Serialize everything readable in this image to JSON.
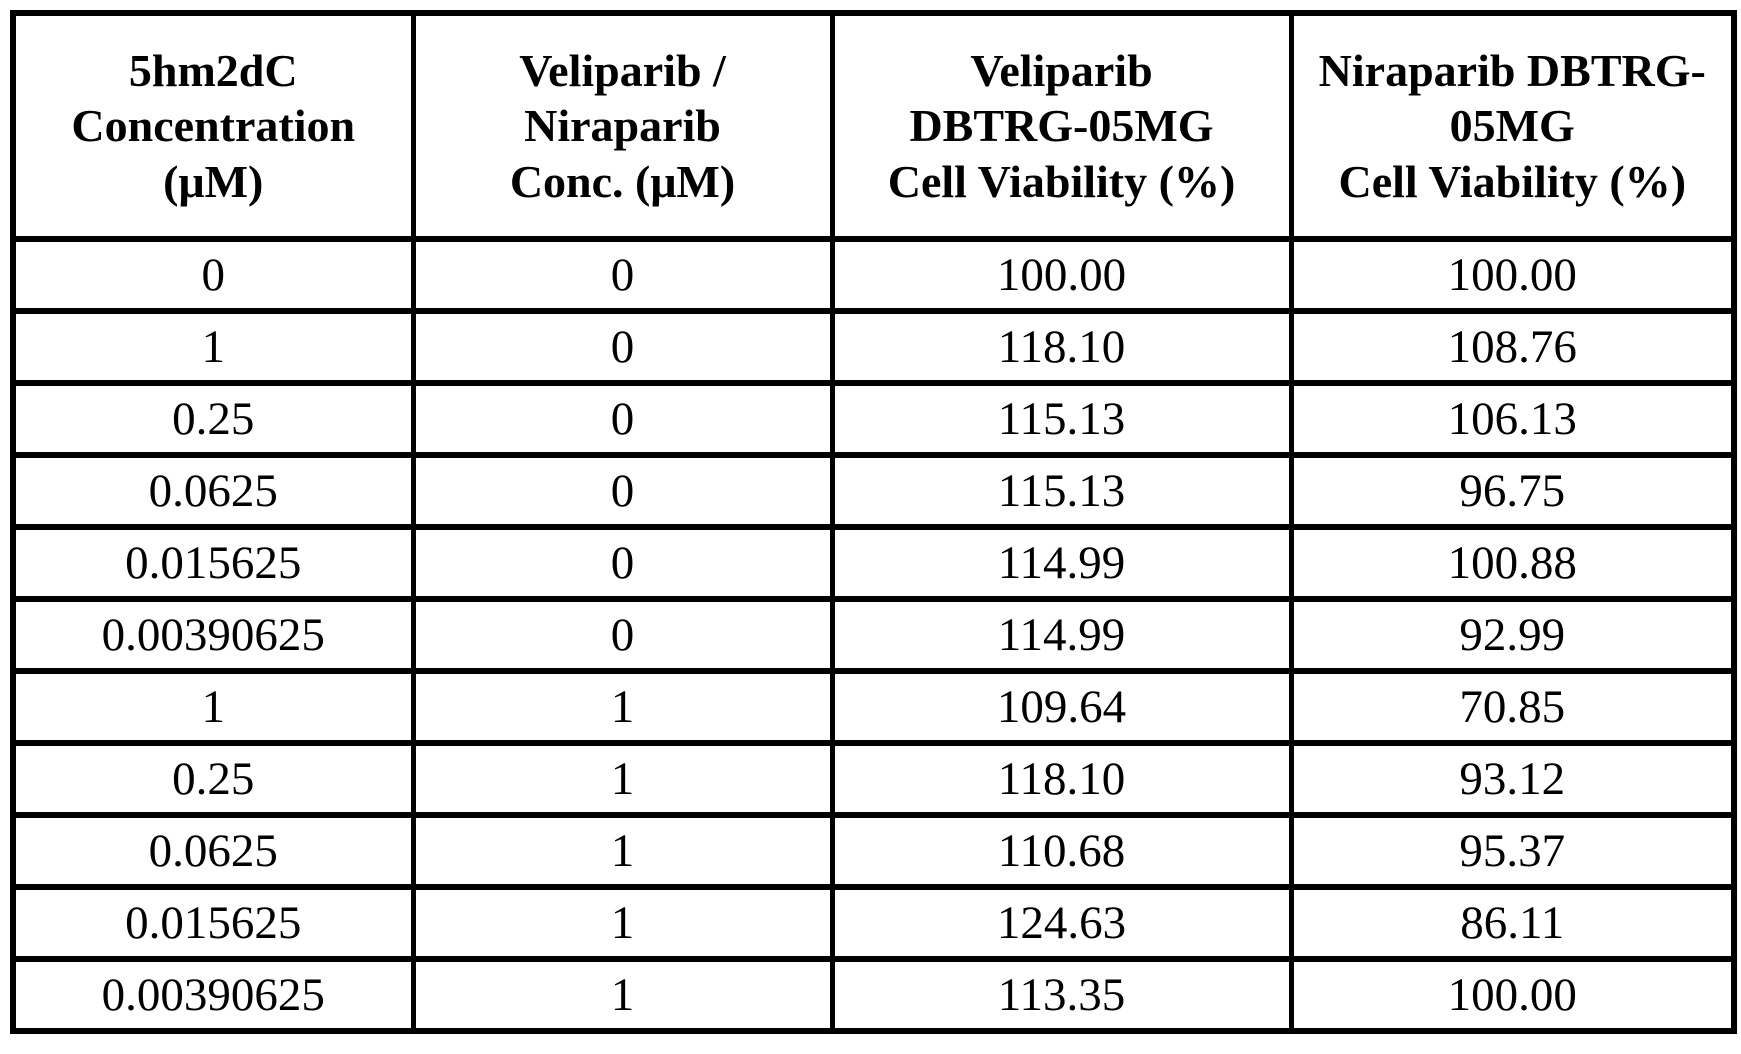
{
  "table": {
    "headers": [
      {
        "label": "5hm2dC\nConcentration\n(μM)"
      },
      {
        "label": "Veliparib /\nNiraparib\nConc. (μM)"
      },
      {
        "label": "Veliparib\nDBTRG-05MG\nCell Viability (%)"
      },
      {
        "label": "Niraparib DBTRG-\n05MG\nCell Viability (%)"
      }
    ],
    "rows": [
      [
        "0",
        "0",
        "100.00",
        "100.00"
      ],
      [
        "1",
        "0",
        "118.10",
        "108.76"
      ],
      [
        "0.25",
        "0",
        "115.13",
        "106.13"
      ],
      [
        "0.0625",
        "0",
        "115.13",
        "96.75"
      ],
      [
        "0.015625",
        "0",
        "114.99",
        "100.88"
      ],
      [
        "0.00390625",
        "0",
        "114.99",
        "92.99"
      ],
      [
        "1",
        "1",
        "109.64",
        "70.85"
      ],
      [
        "0.25",
        "1",
        "118.10",
        "93.12"
      ],
      [
        "0.0625",
        "1",
        "110.68",
        "95.37"
      ],
      [
        "0.015625",
        "1",
        "124.63",
        "86.11"
      ],
      [
        "0.00390625",
        "1",
        "113.35",
        "100.00"
      ]
    ],
    "border_color": "#000000",
    "background_color": "#ffffff"
  },
  "chart_data": {
    "type": "table",
    "title": "",
    "columns": [
      "5hm2dC Concentration (μM)",
      "Veliparib / Niraparib Conc. (μM)",
      "Veliparib DBTRG-05MG Cell Viability (%)",
      "Niraparib DBTRG-05MG Cell Viability (%)"
    ],
    "rows": [
      [
        0,
        0,
        100.0,
        100.0
      ],
      [
        1,
        0,
        118.1,
        108.76
      ],
      [
        0.25,
        0,
        115.13,
        106.13
      ],
      [
        0.0625,
        0,
        115.13,
        96.75
      ],
      [
        0.015625,
        0,
        114.99,
        100.88
      ],
      [
        0.00390625,
        0,
        114.99,
        92.99
      ],
      [
        1,
        1,
        109.64,
        70.85
      ],
      [
        0.25,
        1,
        118.1,
        93.12
      ],
      [
        0.0625,
        1,
        110.68,
        95.37
      ],
      [
        0.015625,
        1,
        124.63,
        86.11
      ],
      [
        0.00390625,
        1,
        113.35,
        100.0
      ]
    ]
  }
}
